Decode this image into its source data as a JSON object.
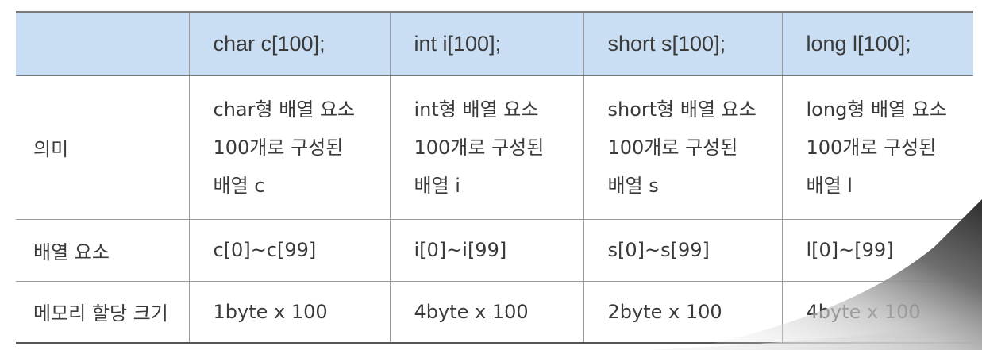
{
  "table": {
    "headers": [
      "",
      "char c[100];",
      "int i[100];",
      "short s[100];",
      "long l[100];"
    ],
    "rows": [
      {
        "label": "의미",
        "cells": [
          [
            "char형 배열 요소",
            "100개로 구성된",
            "배열 c"
          ],
          [
            "int형 배열 요소",
            "100개로 구성된",
            "배열 i"
          ],
          [
            "short형 배열 요소",
            "100개로 구성된",
            "배열 s"
          ],
          [
            "long형 배열 요소",
            "100개로 구성된",
            "배열 l"
          ]
        ]
      },
      {
        "label": "배열 요소",
        "cells": [
          "c[0]~c[99]",
          "i[0]~i[99]",
          "s[0]~s[99]",
          "l[0]~[99]"
        ]
      },
      {
        "label": "메모리 할당 크기",
        "cells": [
          "1byte x 100",
          "4byte x 100",
          "2byte x 100",
          "4byte x 100"
        ]
      }
    ]
  },
  "colors": {
    "header_bg": "#c9def2",
    "border": "#9a9a9a",
    "text": "#3a3a3a"
  }
}
